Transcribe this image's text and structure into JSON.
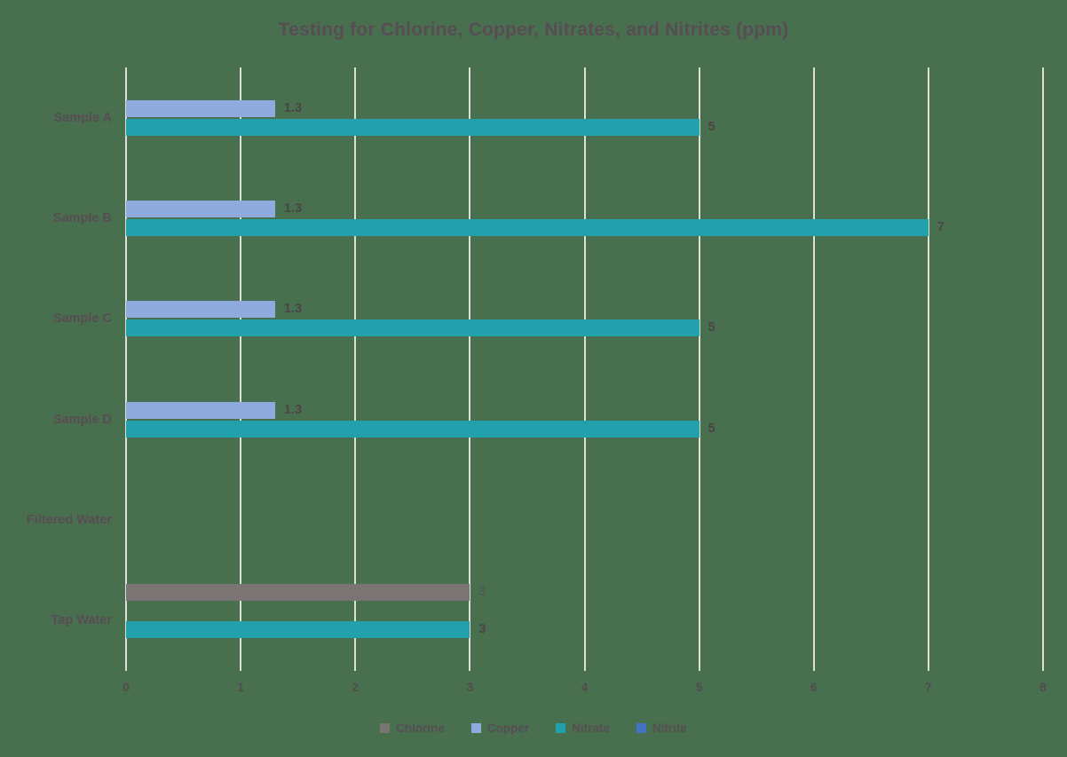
{
  "chart_data": {
    "type": "bar",
    "orientation": "horizontal",
    "title": "Testing for Chlorine, Copper, Nitrates, and Nitrites (ppm)",
    "categories": [
      "Sample A",
      "Sample B",
      "Sample C",
      "Sample D",
      "Filtered Water",
      "Tap Water"
    ],
    "series": [
      {
        "name": "Chlorine",
        "color": "#7B7475",
        "values": [
          0,
          0,
          0,
          0,
          0,
          3
        ],
        "label_bold": false,
        "label_color": "#55504E"
      },
      {
        "name": "Copper",
        "color": "#8FAADC",
        "values": [
          1.3,
          1.3,
          1.3,
          1.3,
          0,
          0
        ],
        "label_bold": true,
        "label_color": "#4A4547"
      },
      {
        "name": "Nitrate",
        "color": "#22A1AC",
        "values": [
          5,
          7,
          5,
          5,
          0,
          3
        ],
        "label_bold": true,
        "label_color": "#4A4547"
      },
      {
        "name": "Nitrite",
        "color": "#4472C4",
        "values": [
          0,
          0,
          0,
          0,
          0,
          0
        ],
        "label_bold": true,
        "label_color": "#4A4547"
      }
    ],
    "x_axis": {
      "min": 0,
      "max": 8,
      "ticks": [
        0,
        1,
        2,
        3,
        4,
        5,
        6,
        7,
        8
      ]
    },
    "legend": [
      "Chlorine",
      "Copper",
      "Nitrate",
      "Nitrite"
    ],
    "legend_position": "bottom",
    "grid": true,
    "data_labels": true,
    "background_color": "#486F4E",
    "gridline_color": "#DDDFD8",
    "title_color": "#584D55",
    "category_label_color": "#584D55",
    "tick_label_color": "#524B51",
    "legend_label_color": "#574D54"
  }
}
